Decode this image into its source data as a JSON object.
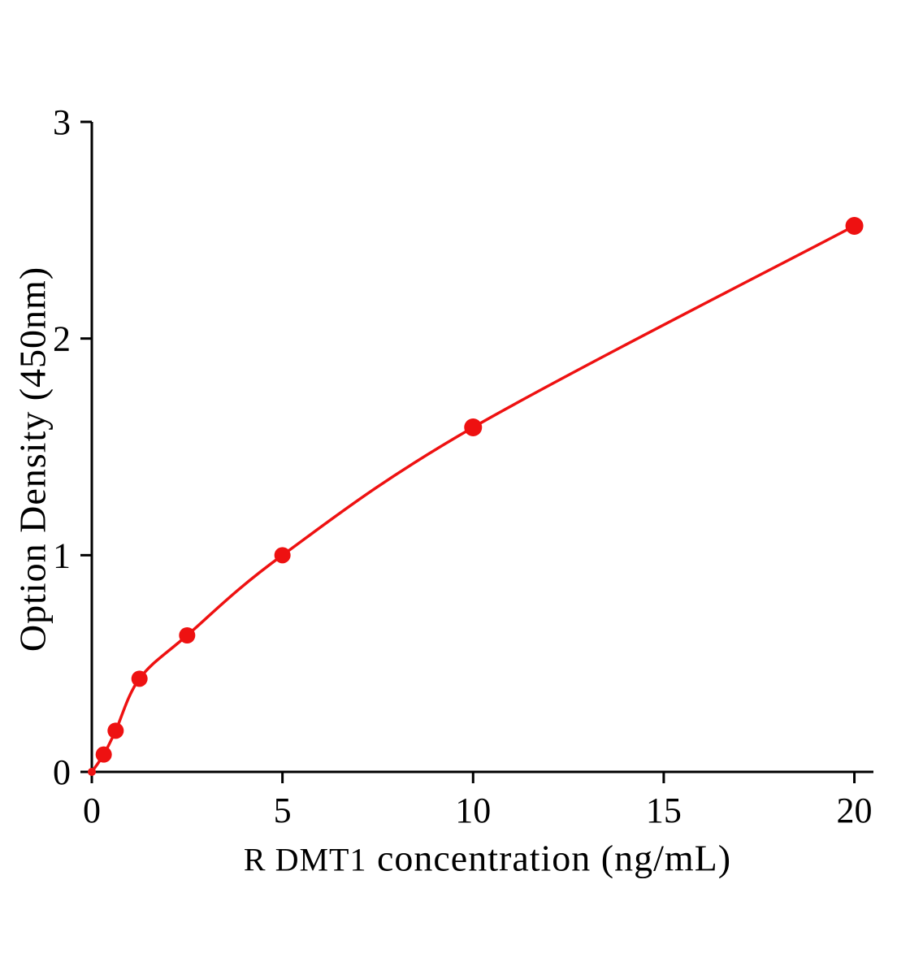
{
  "figure": {
    "background": "#ffffff"
  },
  "chart_data": {
    "type": "scatter",
    "title": "",
    "xlabel_prefix": "R DMT1",
    "xlabel_rest": "  concentration (ng/mL)",
    "ylabel": "Option Density (450nm)",
    "x": [
      0,
      0.3125,
      0.625,
      1.25,
      2.5,
      5,
      10,
      20
    ],
    "y": [
      0,
      0.08,
      0.19,
      0.43,
      0.63,
      1.0,
      1.59,
      2.52
    ],
    "xlim": [
      0,
      20.5
    ],
    "ylim": [
      0,
      3
    ],
    "x_ticks": [
      0,
      5,
      10,
      15,
      20
    ],
    "y_ticks": [
      0,
      1,
      2,
      3
    ],
    "point_radii": [
      5,
      10,
      10,
      10,
      10,
      10,
      11,
      11
    ],
    "colors": {
      "curve": "#ee1111",
      "points": "#ee1111",
      "axis": "#000000",
      "text": "#000000"
    },
    "grid": false,
    "legend": "none",
    "curve_fit": "smooth"
  }
}
